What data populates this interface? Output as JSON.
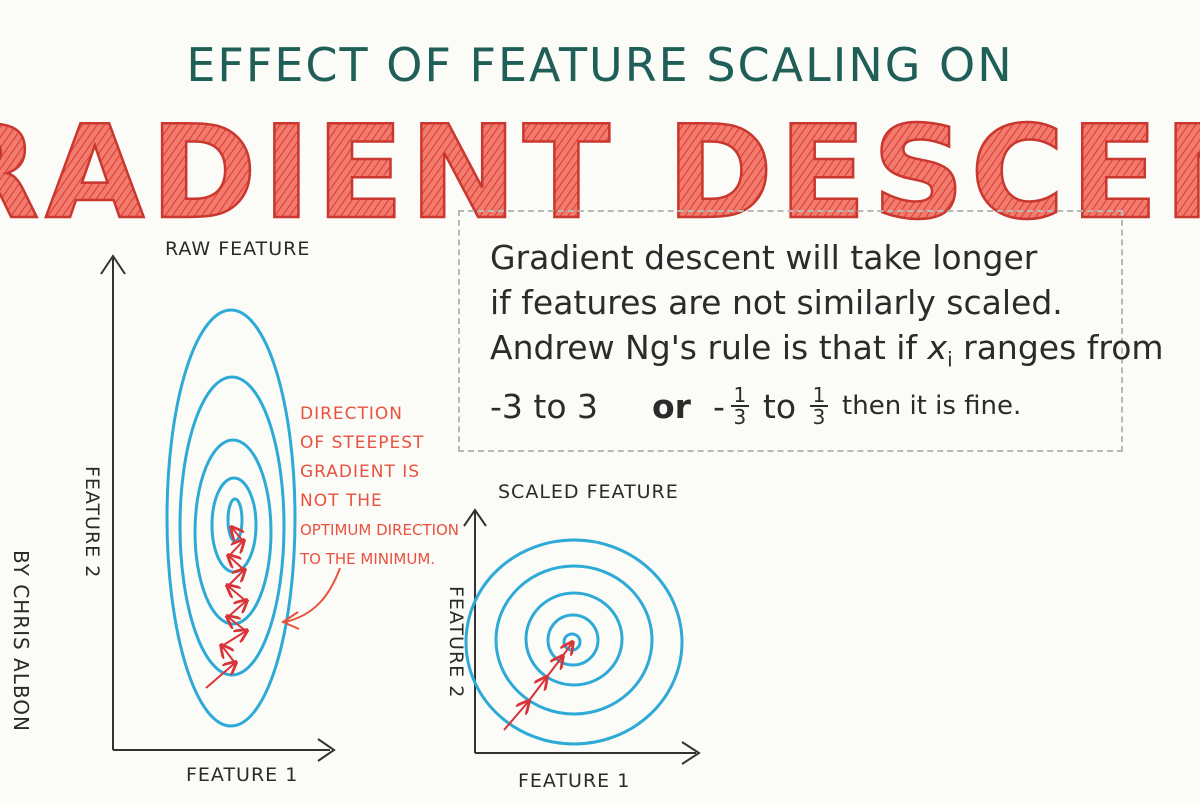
{
  "header": {
    "top_title": "EFFECT OF FEATURE SCALING ON",
    "main_title": "GRADIENT DESCENT"
  },
  "note": {
    "line1": "Gradient descent will take longer",
    "line2": "if features are not similarly scaled.",
    "line3_a": "Andrew Ng's rule is that if",
    "line3_var": "x",
    "line3_sub": "i",
    "line3_b": "ranges from",
    "line4_range": "-3 to 3",
    "line4_or": "or",
    "line4_minus": "-",
    "line4_num": "1",
    "line4_den": "3",
    "line4_to": "to",
    "line4_num2": "1",
    "line4_den2": "3",
    "line4_end": "then it is fine."
  },
  "raw_plot": {
    "title": "RAW FEATURE",
    "xlabel": "FEATURE 1",
    "ylabel": "FEATURE 2",
    "annotation_lines": [
      "DIRECTION",
      "OF STEEPEST",
      "GRADIENT IS",
      "NOT THE",
      "OPTIMUM DIRECTION",
      "TO THE MINIMUM."
    ]
  },
  "scaled_plot": {
    "title": "SCALED FEATURE",
    "xlabel": "FEATURE 1",
    "ylabel": "FEATURE 2"
  },
  "credit": "BY CHRIS ALBON",
  "colors": {
    "contour": "#2eaad6",
    "arrow": "#d8343a",
    "title_red": "#e8524a",
    "title_outline": "#cf3e3a",
    "teal": "#1f5f58"
  }
}
